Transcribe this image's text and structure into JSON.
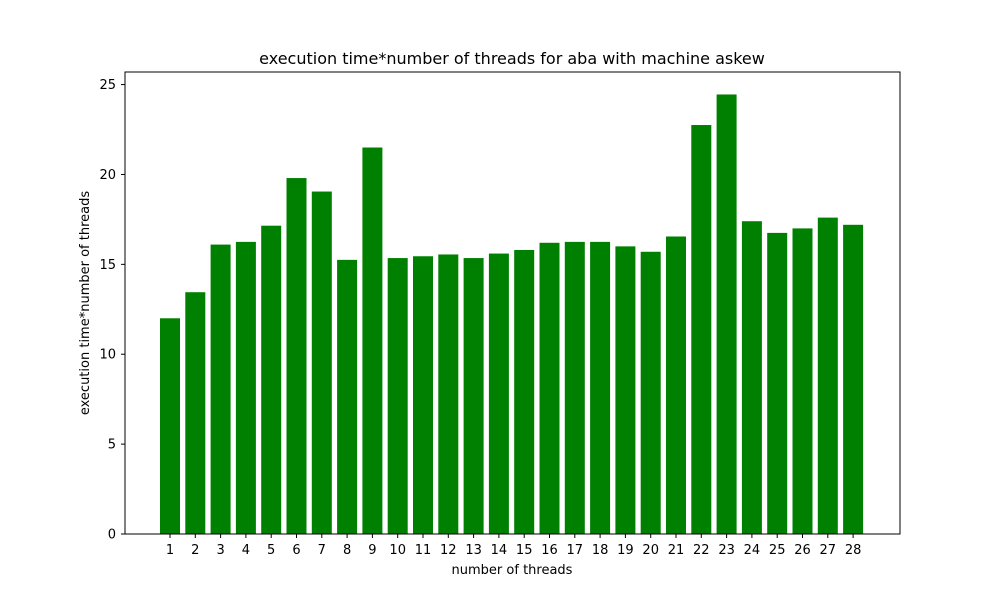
{
  "chart_data": {
    "type": "bar",
    "title": "execution time*number of threads for aba with machine askew",
    "xlabel": "number of threads",
    "ylabel": "execution time*number of threads",
    "categories": [
      "1",
      "2",
      "3",
      "4",
      "5",
      "6",
      "7",
      "8",
      "9",
      "10",
      "11",
      "12",
      "13",
      "14",
      "15",
      "16",
      "17",
      "18",
      "19",
      "20",
      "21",
      "22",
      "23",
      "24",
      "25",
      "26",
      "27",
      "28"
    ],
    "values": [
      12.0,
      13.45,
      16.1,
      16.25,
      17.15,
      19.8,
      19.05,
      15.25,
      21.5,
      15.35,
      15.45,
      15.55,
      15.35,
      15.6,
      15.8,
      16.2,
      16.25,
      16.25,
      16.0,
      15.7,
      16.55,
      22.75,
      24.45,
      17.4,
      16.75,
      17.0,
      17.6,
      17.2
    ],
    "ylim": [
      0,
      25.7
    ],
    "yticks": [
      0,
      5,
      10,
      15,
      20,
      25
    ],
    "bar_color": "#008000",
    "grid": false
  }
}
